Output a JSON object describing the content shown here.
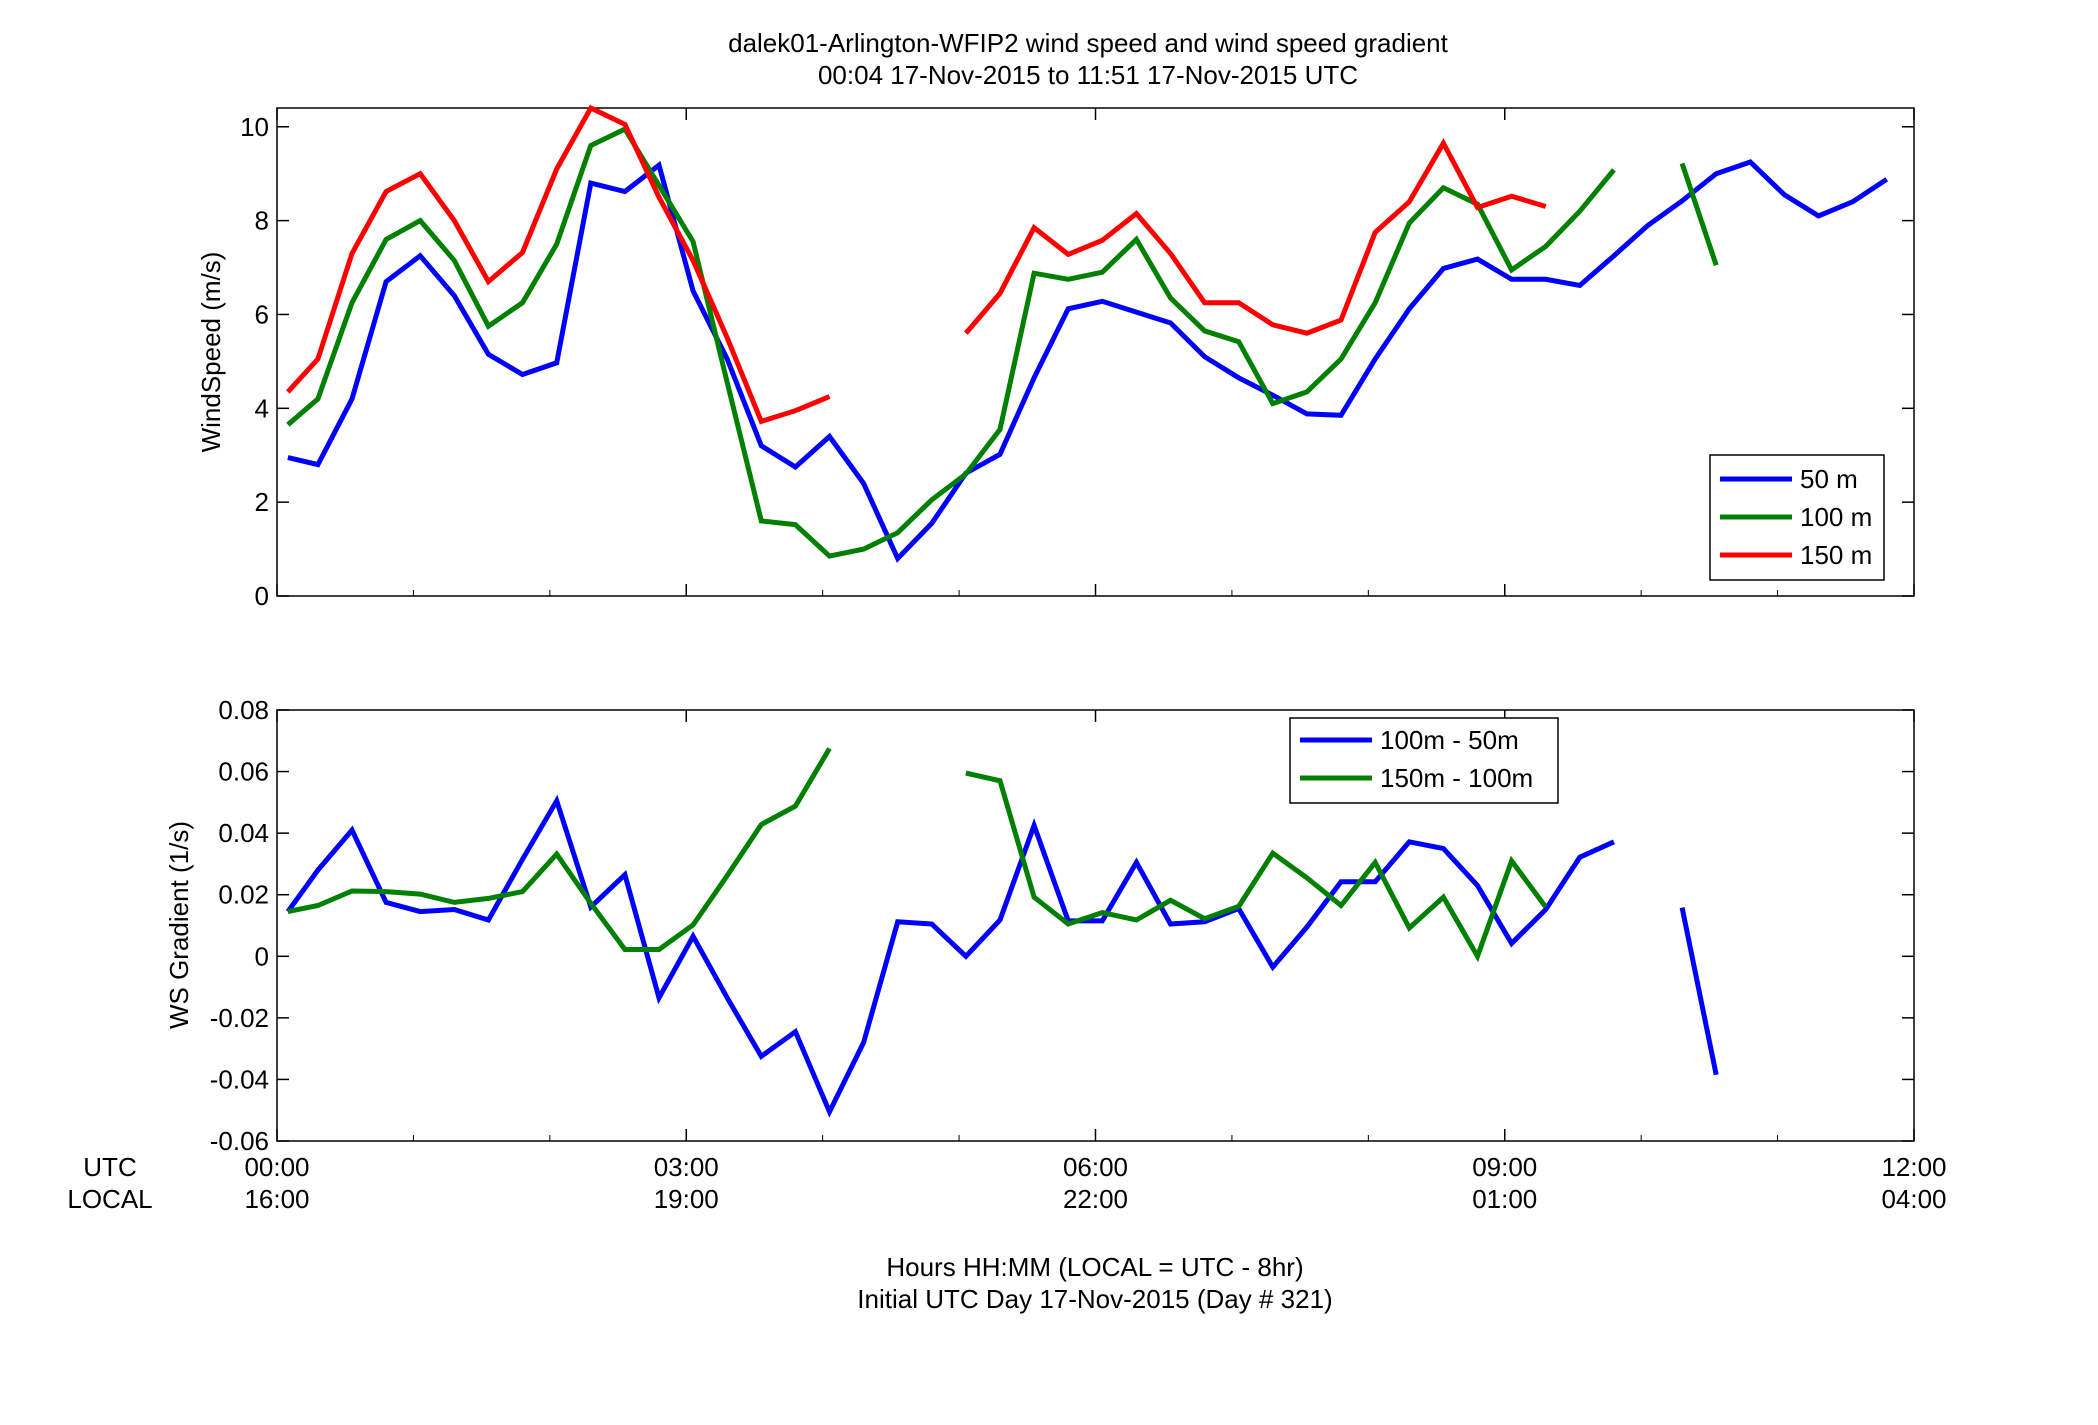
{
  "figure": {
    "title_line1": "dalek01-Arlington-WFIP2  wind speed and wind speed gradient",
    "title_line2": "00:04 17-Nov-2015 to 11:51 17-Nov-2015  UTC",
    "xlabel_line1": "Hours HH:MM  (LOCAL = UTC - 8hr)",
    "xlabel_line2": "Initial UTC Day 17-Nov-2015 (Day # 321)",
    "utc_row_label": "UTC",
    "local_row_label": "LOCAL"
  },
  "chart_data": [
    {
      "type": "line",
      "title": "",
      "ylabel": "WindSpeed (m/s)",
      "xlim": [
        0,
        12
      ],
      "ylim": [
        0,
        10.4
      ],
      "yticks": [
        0,
        2,
        4,
        6,
        8,
        10
      ],
      "ytick_labels": [
        "0",
        "2",
        "4",
        "6",
        "8",
        "10"
      ],
      "xticks": [
        0,
        3,
        6,
        9,
        12
      ],
      "xtick_labels_utc": [
        "00:00",
        "03:00",
        "06:00",
        "09:00",
        "12:00"
      ],
      "xtick_labels_local": [
        "16:00",
        "19:00",
        "22:00",
        "01:00",
        "04:00"
      ],
      "grid": false,
      "legend_position": "bottom-right",
      "x_units": "hours UTC",
      "series": [
        {
          "name": "50 m",
          "color": "#0000ff",
          "segments": [
            [
              [
                0.08,
                2.95
              ],
              [
                0.3,
                2.8
              ],
              [
                0.55,
                4.2
              ],
              [
                0.8,
                6.7
              ],
              [
                1.05,
                7.25
              ],
              [
                1.3,
                6.4
              ],
              [
                1.55,
                5.15
              ],
              [
                1.8,
                4.72
              ],
              [
                2.05,
                4.97
              ],
              [
                2.3,
                8.8
              ],
              [
                2.55,
                8.62
              ],
              [
                2.8,
                9.18
              ],
              [
                3.05,
                6.5
              ],
              [
                3.3,
                5.05
              ],
              [
                3.55,
                3.2
              ],
              [
                3.8,
                2.75
              ],
              [
                4.05,
                3.4
              ],
              [
                4.3,
                2.4
              ],
              [
                4.55,
                0.8
              ],
              [
                4.8,
                1.55
              ],
              [
                5.05,
                2.62
              ],
              [
                5.3,
                3.02
              ],
              [
                5.55,
                4.65
              ],
              [
                5.8,
                6.12
              ],
              [
                6.05,
                6.28
              ],
              [
                6.3,
                6.05
              ],
              [
                6.55,
                5.82
              ],
              [
                6.8,
                5.1
              ],
              [
                7.05,
                4.65
              ],
              [
                7.3,
                4.28
              ],
              [
                7.55,
                3.88
              ],
              [
                7.8,
                3.85
              ],
              [
                8.05,
                5.05
              ],
              [
                8.3,
                6.12
              ],
              [
                8.55,
                6.98
              ],
              [
                8.8,
                7.18
              ],
              [
                9.05,
                6.75
              ],
              [
                9.3,
                6.75
              ],
              [
                9.55,
                6.62
              ],
              [
                9.8,
                7.25
              ],
              [
                10.05,
                7.9
              ],
              [
                10.3,
                8.42
              ],
              [
                10.55,
                9.0
              ],
              [
                10.8,
                9.25
              ],
              [
                11.05,
                8.55
              ],
              [
                11.3,
                8.1
              ],
              [
                11.55,
                8.4
              ],
              [
                11.8,
                8.88
              ]
            ]
          ]
        },
        {
          "name": "100 m",
          "color": "#008000",
          "segments": [
            [
              [
                0.08,
                3.65
              ],
              [
                0.3,
                4.2
              ],
              [
                0.55,
                6.25
              ],
              [
                0.8,
                7.6
              ],
              [
                1.05,
                8.0
              ],
              [
                1.3,
                7.15
              ],
              [
                1.55,
                5.75
              ],
              [
                1.8,
                6.25
              ],
              [
                2.05,
                7.5
              ],
              [
                2.3,
                9.6
              ],
              [
                2.55,
                9.95
              ],
              [
                2.8,
                8.75
              ],
              [
                3.05,
                7.55
              ],
              [
                3.3,
                4.55
              ],
              [
                3.55,
                1.6
              ],
              [
                3.8,
                1.52
              ],
              [
                4.05,
                0.85
              ],
              [
                4.3,
                1.0
              ],
              [
                4.55,
                1.35
              ],
              [
                4.8,
                2.05
              ],
              [
                5.05,
                2.6
              ],
              [
                5.3,
                3.55
              ],
              [
                5.55,
                6.88
              ],
              [
                5.8,
                6.75
              ],
              [
                6.05,
                6.9
              ],
              [
                6.3,
                7.6
              ],
              [
                6.55,
                6.35
              ],
              [
                6.8,
                5.65
              ],
              [
                7.05,
                5.42
              ],
              [
                7.3,
                4.1
              ],
              [
                7.55,
                4.35
              ],
              [
                7.8,
                5.05
              ],
              [
                8.05,
                6.25
              ],
              [
                8.3,
                7.95
              ],
              [
                8.55,
                8.7
              ],
              [
                8.8,
                8.35
              ],
              [
                9.05,
                6.95
              ],
              [
                9.3,
                7.45
              ],
              [
                9.55,
                8.2
              ],
              [
                9.8,
                9.08
              ]
            ],
            [
              [
                10.3,
                9.22
              ],
              [
                10.55,
                7.05
              ]
            ]
          ]
        },
        {
          "name": "150 m",
          "color": "#ff0000",
          "segments": [
            [
              [
                0.08,
                4.35
              ],
              [
                0.3,
                5.05
              ],
              [
                0.55,
                7.3
              ],
              [
                0.8,
                8.62
              ],
              [
                1.05,
                9.0
              ],
              [
                1.3,
                8.0
              ],
              [
                1.55,
                6.7
              ],
              [
                1.8,
                7.32
              ],
              [
                2.05,
                9.1
              ],
              [
                2.3,
                10.4
              ],
              [
                2.55,
                10.05
              ],
              [
                2.8,
                8.5
              ],
              [
                3.05,
                7.15
              ],
              [
                3.3,
                5.5
              ],
              [
                3.55,
                3.72
              ],
              [
                3.8,
                3.95
              ],
              [
                4.05,
                4.25
              ]
            ],
            [
              [
                5.05,
                5.6
              ],
              [
                5.3,
                6.45
              ],
              [
                5.55,
                7.85
              ],
              [
                5.8,
                7.28
              ],
              [
                6.05,
                7.58
              ],
              [
                6.3,
                8.15
              ],
              [
                6.55,
                7.3
              ],
              [
                6.8,
                6.25
              ],
              [
                7.05,
                6.25
              ],
              [
                7.3,
                5.78
              ],
              [
                7.55,
                5.6
              ],
              [
                7.8,
                5.88
              ],
              [
                8.05,
                7.75
              ],
              [
                8.3,
                8.4
              ],
              [
                8.55,
                9.65
              ],
              [
                8.8,
                8.28
              ],
              [
                9.05,
                8.52
              ],
              [
                9.3,
                8.3
              ]
            ]
          ]
        }
      ]
    },
    {
      "type": "line",
      "title": "",
      "ylabel": "WS Gradient (1/s)",
      "xlim": [
        0,
        12
      ],
      "ylim": [
        -0.06,
        0.08
      ],
      "yticks": [
        -0.06,
        -0.04,
        -0.02,
        0,
        0.02,
        0.04,
        0.06,
        0.08
      ],
      "ytick_labels": [
        "-0.06",
        "-0.04",
        "-0.02",
        "0",
        "0.02",
        "0.04",
        "0.06",
        "0.08"
      ],
      "xticks": [
        0,
        3,
        6,
        9,
        12
      ],
      "xtick_labels_utc": [
        "00:00",
        "03:00",
        "06:00",
        "09:00",
        "12:00"
      ],
      "xtick_labels_local": [
        "16:00",
        "19:00",
        "22:00",
        "01:00",
        "04:00"
      ],
      "grid": false,
      "legend_position": "top-center-right",
      "x_units": "hours UTC",
      "series": [
        {
          "name": "100m - 50m",
          "color": "#0000ff",
          "segments": [
            [
              [
                0.08,
                0.0145
              ],
              [
                0.3,
                0.028
              ],
              [
                0.55,
                0.041
              ],
              [
                0.8,
                0.0175
              ],
              [
                1.05,
                0.0145
              ],
              [
                1.3,
                0.0152
              ],
              [
                1.55,
                0.0118
              ],
              [
                1.8,
                0.0315
              ],
              [
                2.05,
                0.0505
              ],
              [
                2.3,
                0.016
              ],
              [
                2.55,
                0.0265
              ],
              [
                2.8,
                -0.0135
              ],
              [
                3.05,
                0.0065
              ],
              [
                3.3,
                -0.0135
              ],
              [
                3.55,
                -0.0325
              ],
              [
                3.8,
                -0.0245
              ],
              [
                4.05,
                -0.0505
              ],
              [
                4.3,
                -0.028
              ],
              [
                4.55,
                0.0112
              ],
              [
                4.8,
                0.0105
              ],
              [
                5.05,
                0.0
              ],
              [
                5.3,
                0.0118
              ],
              [
                5.55,
                0.0425
              ],
              [
                5.8,
                0.0115
              ],
              [
                6.05,
                0.0115
              ],
              [
                6.3,
                0.0305
              ],
              [
                6.55,
                0.0105
              ],
              [
                6.8,
                0.0112
              ],
              [
                7.05,
                0.0155
              ],
              [
                7.3,
                -0.0035
              ],
              [
                7.55,
                0.0095
              ],
              [
                7.8,
                0.0242
              ],
              [
                8.05,
                0.0242
              ],
              [
                8.3,
                0.0372
              ],
              [
                8.55,
                0.035
              ],
              [
                8.8,
                0.023
              ],
              [
                9.05,
                0.0042
              ],
              [
                9.3,
                0.0152
              ],
              [
                9.55,
                0.0322
              ],
              [
                9.8,
                0.0372
              ]
            ],
            [
              [
                10.3,
                0.0158
              ],
              [
                10.55,
                -0.0385
              ]
            ]
          ]
        },
        {
          "name": "150m - 100m",
          "color": "#008000",
          "segments": [
            [
              [
                0.08,
                0.0145
              ],
              [
                0.3,
                0.0165
              ],
              [
                0.55,
                0.0212
              ],
              [
                0.8,
                0.021
              ],
              [
                1.05,
                0.0202
              ],
              [
                1.3,
                0.0175
              ],
              [
                1.55,
                0.0188
              ],
              [
                1.8,
                0.021
              ],
              [
                2.05,
                0.0332
              ],
              [
                2.3,
                0.0172
              ],
              [
                2.55,
                0.0022
              ],
              [
                2.8,
                0.0022
              ],
              [
                3.05,
                0.0102
              ],
              [
                3.3,
                0.0262
              ],
              [
                3.55,
                0.0428
              ],
              [
                3.8,
                0.0488
              ],
              [
                4.05,
                0.0675
              ]
            ],
            [
              [
                5.05,
                0.0595
              ],
              [
                5.3,
                0.057
              ],
              [
                5.55,
                0.0192
              ],
              [
                5.8,
                0.0105
              ],
              [
                6.05,
                0.0142
              ],
              [
                6.3,
                0.0118
              ],
              [
                6.55,
                0.0182
              ],
              [
                6.8,
                0.0122
              ],
              [
                7.05,
                0.0162
              ],
              [
                7.3,
                0.0335
              ],
              [
                7.55,
                0.0255
              ],
              [
                7.8,
                0.0165
              ],
              [
                8.05,
                0.0305
              ],
              [
                8.3,
                0.0092
              ],
              [
                8.55,
                0.0192
              ],
              [
                8.8,
                0.0
              ],
              [
                9.05,
                0.031
              ],
              [
                9.3,
                0.016
              ]
            ]
          ]
        }
      ]
    }
  ]
}
